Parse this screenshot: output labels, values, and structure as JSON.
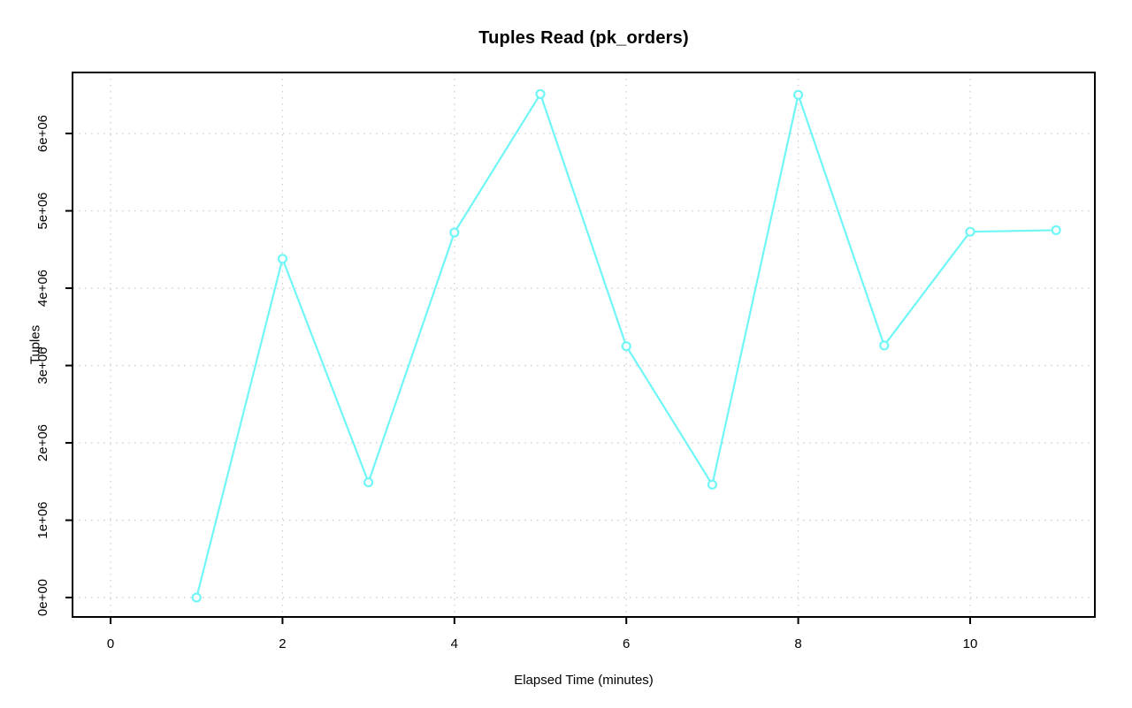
{
  "figure": {
    "background_color": "#ffffff",
    "axis_color": "#000000"
  },
  "chart_data": {
    "type": "line",
    "title": "Tuples Read (pk_orders)",
    "xlabel": "Elapsed Time (minutes)",
    "ylabel": "Tuples",
    "line_style": "points-connected-with-gaps",
    "marker": "open-circle",
    "series_color": "#70F6F6",
    "grid_color": "#CFCFCF",
    "grid": true,
    "legend_position": "none",
    "x": [
      1,
      2,
      3,
      4,
      5,
      6,
      7,
      8,
      9,
      10,
      11
    ],
    "values": [
      0,
      4380000,
      1490000,
      4720000,
      6510000,
      3250000,
      1460000,
      6500000,
      3260000,
      4730000,
      4750000
    ],
    "x_tick_values": [
      0,
      2,
      4,
      6,
      8,
      10
    ],
    "x_tick_labels": [
      "0",
      "2",
      "4",
      "6",
      "8",
      "10"
    ],
    "y_tick_values": [
      0,
      1000000,
      2000000,
      3000000,
      4000000,
      5000000,
      6000000
    ],
    "y_tick_labels": [
      "0e+00",
      "1e+06",
      "2e+06",
      "3e+06",
      "4e+06",
      "5e+06",
      "6e+06"
    ],
    "xlim": [
      -0.443,
      11.451
    ],
    "ylim": [
      -251000,
      6789000
    ]
  }
}
